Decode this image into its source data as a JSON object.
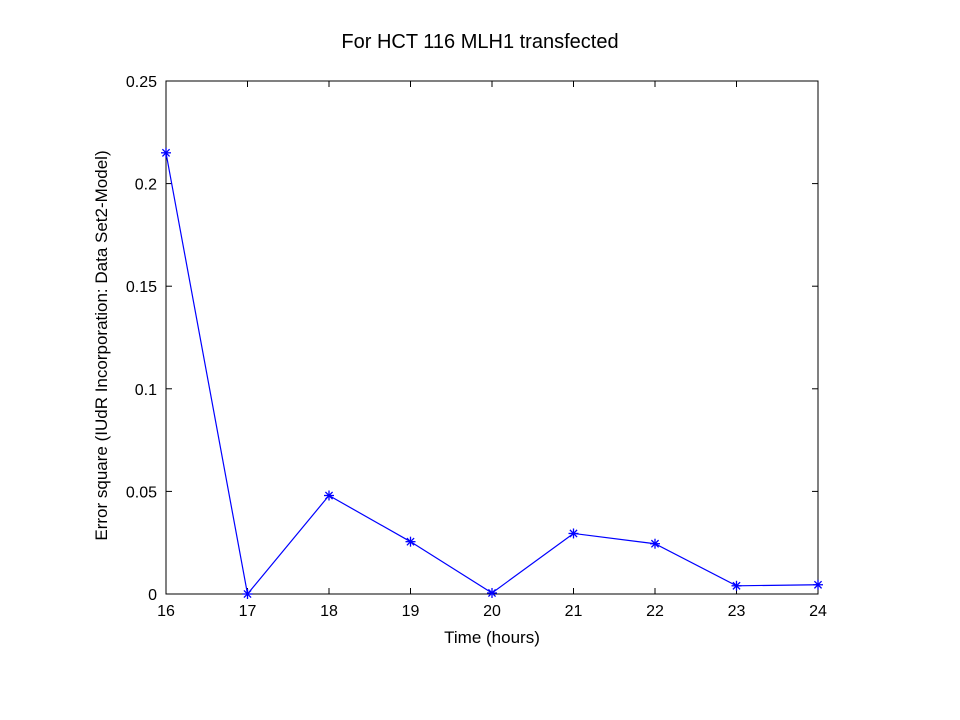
{
  "chart_data": {
    "type": "line",
    "title": "For HCT 116 MLH1 transfected",
    "xlabel": "Time (hours)",
    "ylabel": "Error square (IUdR Incorporation: Data Set2-Model)",
    "xlim": [
      16,
      24
    ],
    "ylim": [
      0,
      0.25
    ],
    "xticks": [
      16,
      17,
      18,
      19,
      20,
      21,
      22,
      23,
      24
    ],
    "yticks": [
      0,
      0.05,
      0.1,
      0.15,
      0.2,
      0.25
    ],
    "ytick_labels": [
      "0",
      "0.05",
      "0.1",
      "0.15",
      "0.2",
      "0.25"
    ],
    "grid": false,
    "marker": "asterisk",
    "colors": {
      "line": "#0000ff",
      "axes": "#000000",
      "background": "#ffffff"
    },
    "series": [
      {
        "x": [
          16,
          17,
          18,
          19,
          20,
          21,
          22,
          23,
          24
        ],
        "y": [
          0.215,
          0.0,
          0.048,
          0.0255,
          0.0005,
          0.0295,
          0.0245,
          0.004,
          0.0045
        ]
      }
    ]
  }
}
